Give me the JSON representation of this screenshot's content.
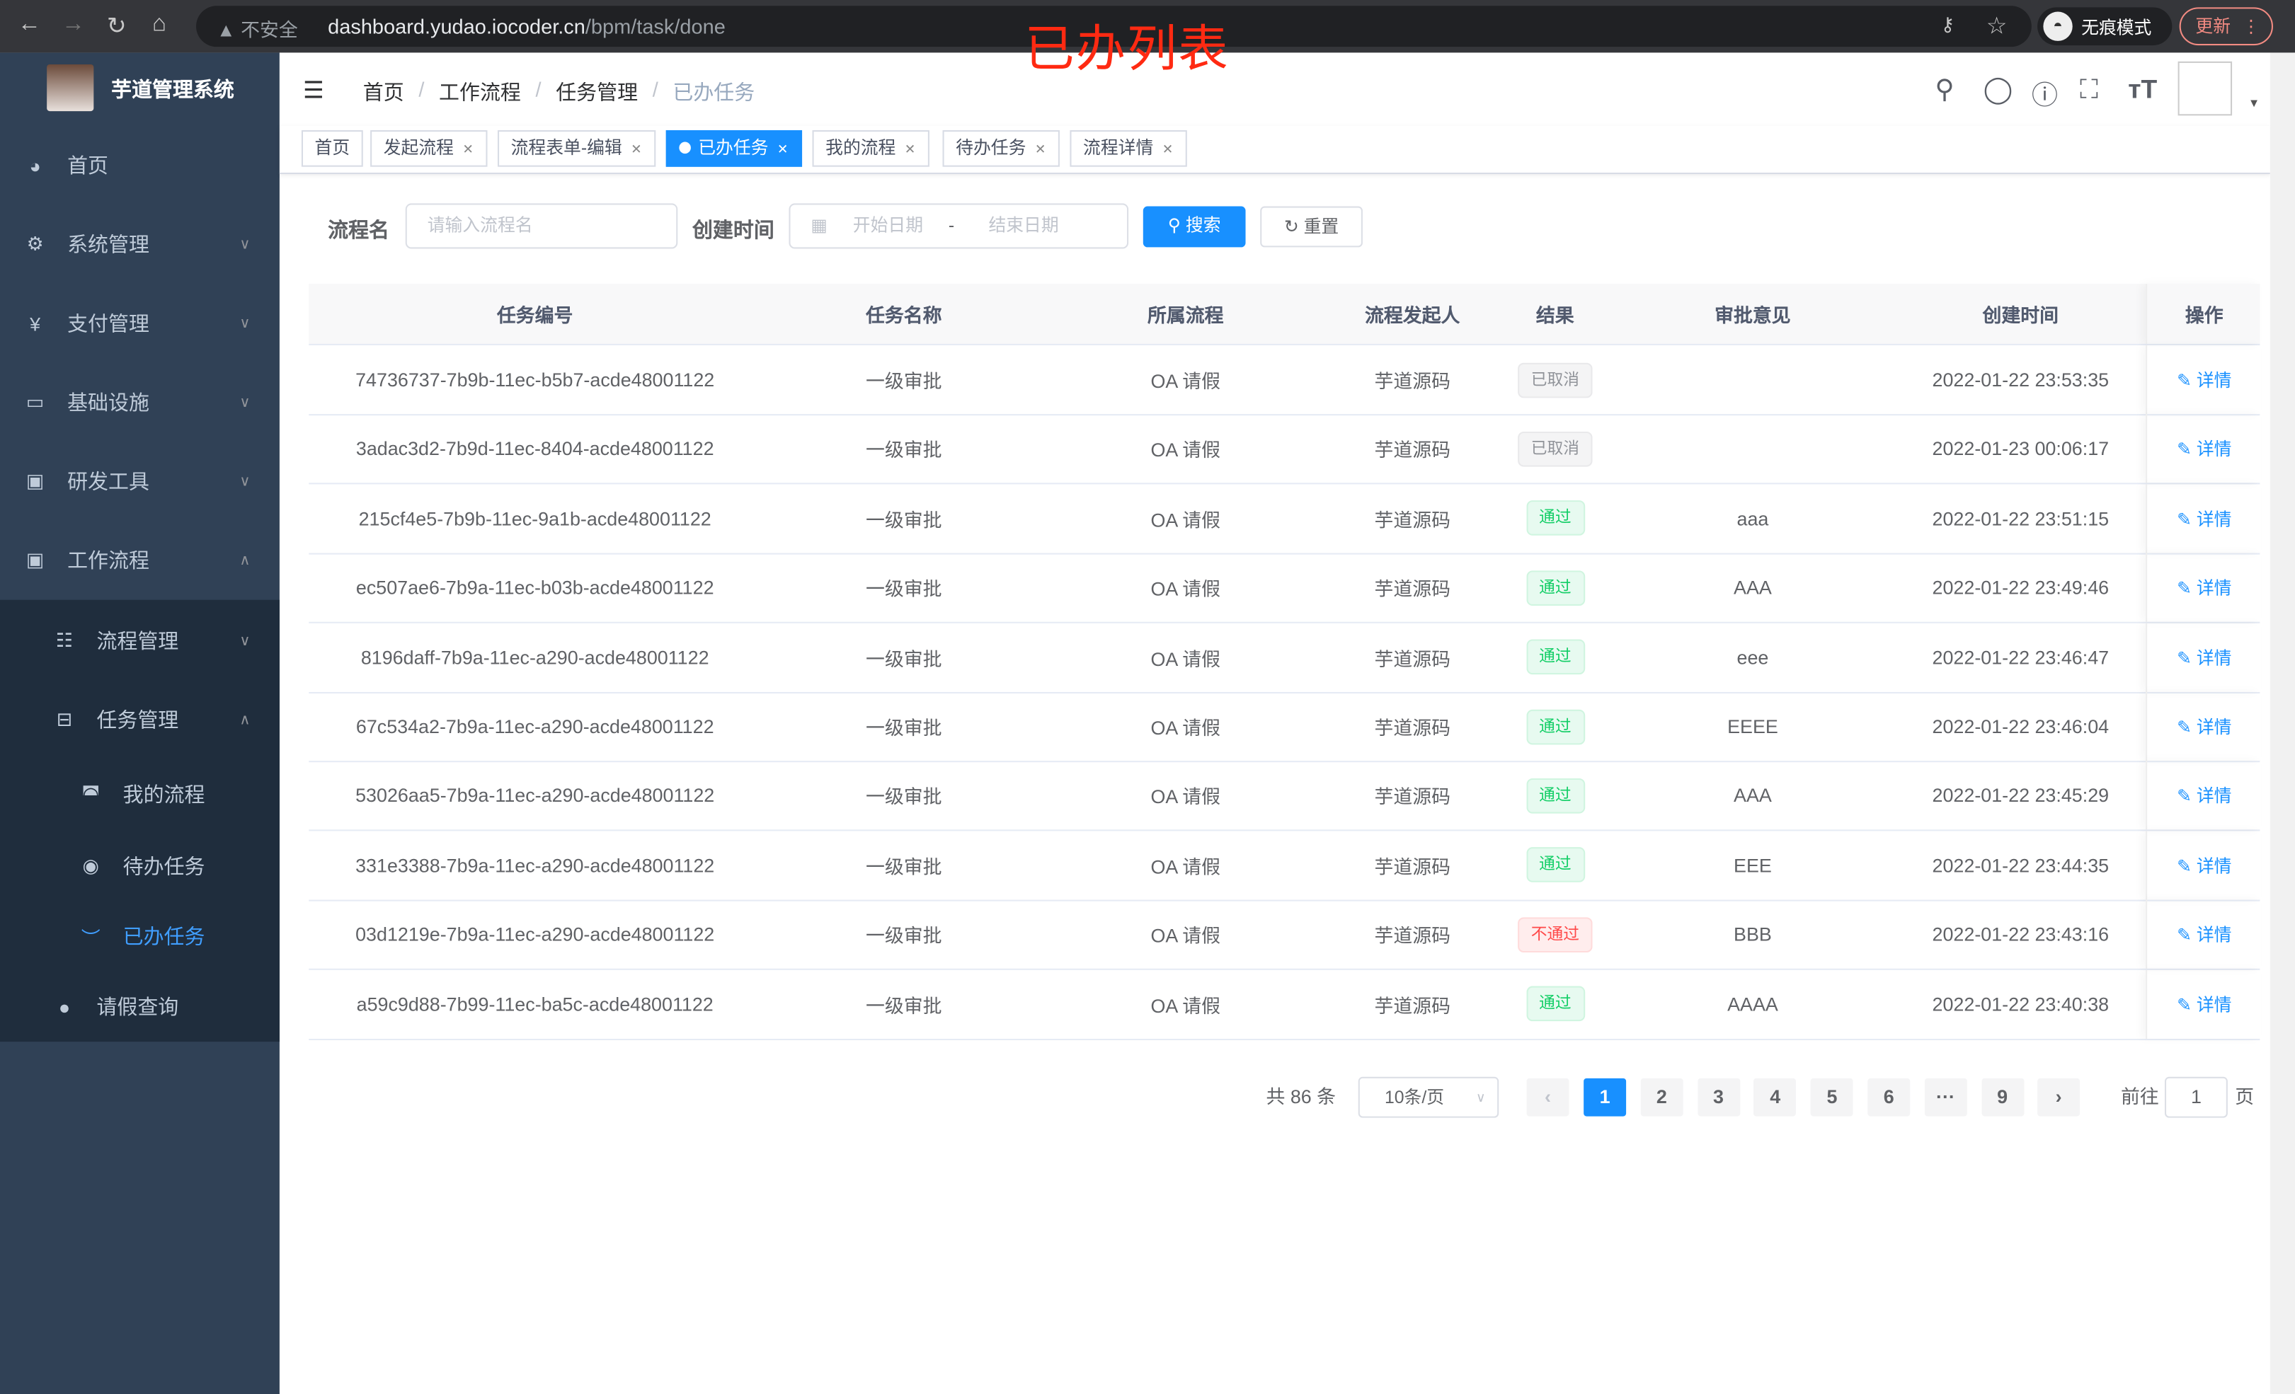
{
  "browser": {
    "insecure_label": "不安全",
    "url_host": "dashboard.yudao.iocoder.cn",
    "url_path": "/bpm/task/done",
    "incognito_label": "无痕模式",
    "update_label": "更新"
  },
  "annotation": "已办列表",
  "sidebar": {
    "app_name": "芋道管理系统",
    "items": [
      {
        "label": "首页",
        "icon": "dashboard-icon"
      },
      {
        "label": "系统管理",
        "icon": "gear-icon"
      },
      {
        "label": "支付管理",
        "icon": "yen-icon"
      },
      {
        "label": "基础设施",
        "icon": "monitor-icon"
      },
      {
        "label": "研发工具",
        "icon": "toolbox-icon"
      },
      {
        "label": "工作流程",
        "icon": "toolbox-icon"
      },
      {
        "label": "流程管理",
        "icon": "list-icon"
      },
      {
        "label": "任务管理",
        "icon": "tree-icon"
      },
      {
        "label": "我的流程",
        "icon": "headset-icon"
      },
      {
        "label": "待办任务",
        "icon": "eye-icon"
      },
      {
        "label": "已办任务",
        "icon": "eye-closed-icon"
      },
      {
        "label": "请假查询",
        "icon": "user-icon"
      }
    ]
  },
  "breadcrumb": [
    "首页",
    "工作流程",
    "任务管理",
    "已办任务"
  ],
  "tags": [
    {
      "label": "首页"
    },
    {
      "label": "发起流程"
    },
    {
      "label": "流程表单-编辑"
    },
    {
      "label": "已办任务"
    },
    {
      "label": "我的流程"
    },
    {
      "label": "待办任务"
    },
    {
      "label": "流程详情"
    }
  ],
  "filters": {
    "name_label": "流程名",
    "name_placeholder": "请输入流程名",
    "time_label": "创建时间",
    "start_placeholder": "开始日期",
    "range_sep": "-",
    "end_placeholder": "结束日期",
    "search_label": "搜索",
    "reset_label": "重置"
  },
  "table": {
    "headers": [
      "任务编号",
      "任务名称",
      "所属流程",
      "流程发起人",
      "结果",
      "审批意见",
      "创建时间",
      "操作"
    ],
    "action_label": "详情",
    "rows": [
      {
        "id": "74736737-7b9b-11ec-b5b7-acde48001122",
        "name": "一级审批",
        "process": "OA 请假",
        "starter": "芋道源码",
        "result": "已取消",
        "result_type": "cancel",
        "comment": "",
        "time": "2022-01-22 23:53:35"
      },
      {
        "id": "3adac3d2-7b9d-11ec-8404-acde48001122",
        "name": "一级审批",
        "process": "OA 请假",
        "starter": "芋道源码",
        "result": "已取消",
        "result_type": "cancel",
        "comment": "",
        "time": "2022-01-23 00:06:17"
      },
      {
        "id": "215cf4e5-7b9b-11ec-9a1b-acde48001122",
        "name": "一级审批",
        "process": "OA 请假",
        "starter": "芋道源码",
        "result": "通过",
        "result_type": "pass",
        "comment": "aaa",
        "time": "2022-01-22 23:51:15"
      },
      {
        "id": "ec507ae6-7b9a-11ec-b03b-acde48001122",
        "name": "一级审批",
        "process": "OA 请假",
        "starter": "芋道源码",
        "result": "通过",
        "result_type": "pass",
        "comment": "AAA",
        "time": "2022-01-22 23:49:46"
      },
      {
        "id": "8196daff-7b9a-11ec-a290-acde48001122",
        "name": "一级审批",
        "process": "OA 请假",
        "starter": "芋道源码",
        "result": "通过",
        "result_type": "pass",
        "comment": "eee",
        "time": "2022-01-22 23:46:47"
      },
      {
        "id": "67c534a2-7b9a-11ec-a290-acde48001122",
        "name": "一级审批",
        "process": "OA 请假",
        "starter": "芋道源码",
        "result": "通过",
        "result_type": "pass",
        "comment": "EEEE",
        "time": "2022-01-22 23:46:04"
      },
      {
        "id": "53026aa5-7b9a-11ec-a290-acde48001122",
        "name": "一级审批",
        "process": "OA 请假",
        "starter": "芋道源码",
        "result": "通过",
        "result_type": "pass",
        "comment": "AAA",
        "time": "2022-01-22 23:45:29"
      },
      {
        "id": "331e3388-7b9a-11ec-a290-acde48001122",
        "name": "一级审批",
        "process": "OA 请假",
        "starter": "芋道源码",
        "result": "通过",
        "result_type": "pass",
        "comment": "EEE",
        "time": "2022-01-22 23:44:35"
      },
      {
        "id": "03d1219e-7b9a-11ec-a290-acde48001122",
        "name": "一级审批",
        "process": "OA 请假",
        "starter": "芋道源码",
        "result": "不通过",
        "result_type": "reject",
        "comment": "BBB",
        "time": "2022-01-22 23:43:16"
      },
      {
        "id": "a59c9d88-7b99-11ec-ba5c-acde48001122",
        "name": "一级审批",
        "process": "OA 请假",
        "starter": "芋道源码",
        "result": "通过",
        "result_type": "pass",
        "comment": "AAAA",
        "time": "2022-01-22 23:40:38"
      }
    ]
  },
  "pagination": {
    "total": "共 86 条",
    "page_size": "10条/页",
    "pages": [
      "1",
      "2",
      "3",
      "4",
      "5",
      "6",
      "···",
      "9"
    ],
    "current": "1",
    "goto_label": "前往",
    "goto_value": "1",
    "page_suffix": "页"
  },
  "colors": {
    "primary": "#1890ff",
    "sidebar": "#304156",
    "pass": "#13ce66",
    "reject": "#ff4949"
  }
}
